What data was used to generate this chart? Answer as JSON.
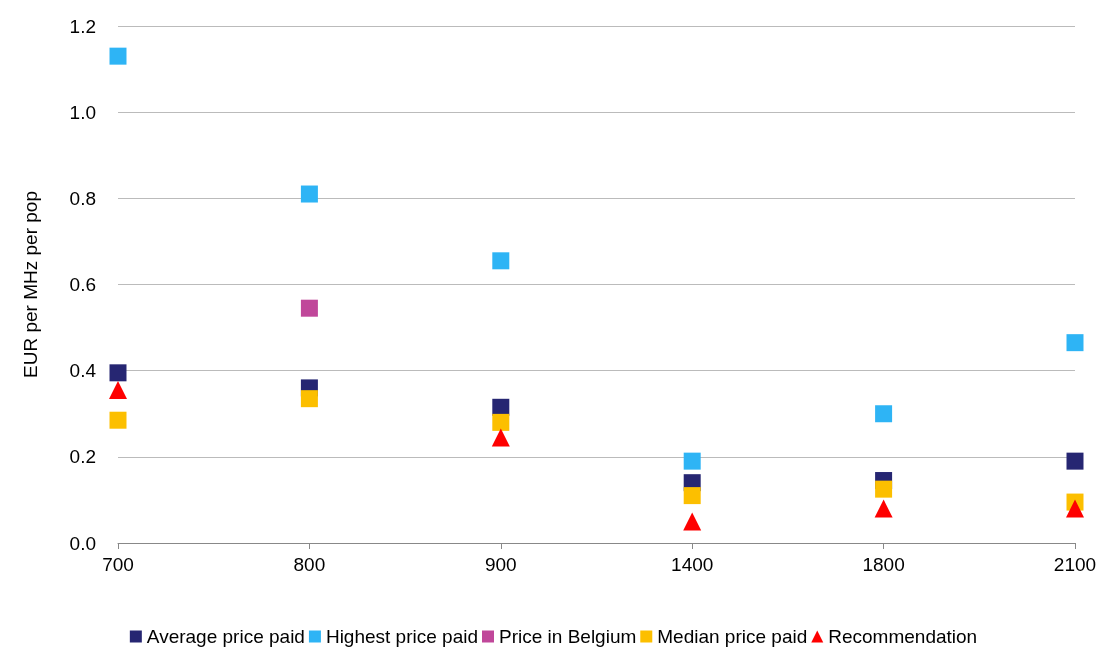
{
  "chart_data": {
    "type": "scatter",
    "ylabel": "EUR per MHz per pop",
    "categories": [
      "700",
      "800",
      "900",
      "1400",
      "1800",
      "2100"
    ],
    "ylim": [
      0,
      1.2
    ],
    "yticks": [
      {
        "value": 0,
        "label": "0.0"
      },
      {
        "value": 0.2,
        "label": "0.2"
      },
      {
        "value": 0.4,
        "label": "0.4"
      },
      {
        "value": 0.6,
        "label": "0.6"
      },
      {
        "value": 0.8,
        "label": "0.8"
      },
      {
        "value": 1,
        "label": "1.0"
      },
      {
        "value": 1.2,
        "label": "1.2"
      }
    ],
    "grid": "y",
    "legend": "bottom",
    "series": [
      {
        "name": "Average price paid",
        "color": "#262672",
        "marker": "square",
        "values": [
          0.395,
          0.36,
          0.315,
          0.14,
          0.145,
          0.19
        ]
      },
      {
        "name": "Highest price paid",
        "color": "#2eb4f5",
        "marker": "square",
        "values": [
          1.13,
          0.81,
          0.655,
          0.19,
          0.3,
          0.465
        ]
      },
      {
        "name": "Price in Belgium",
        "color": "#c0479a",
        "marker": "square",
        "values": [
          null,
          0.545,
          null,
          null,
          null,
          null
        ]
      },
      {
        "name": "Median price paid",
        "color": "#fcbf00",
        "marker": "square",
        "values": [
          0.285,
          0.335,
          0.28,
          0.11,
          0.125,
          0.095
        ]
      },
      {
        "name": "Recommendation",
        "color": "#fe0000",
        "marker": "triangle",
        "values": [
          0.355,
          null,
          0.245,
          0.05,
          0.08,
          0.08
        ]
      }
    ]
  }
}
